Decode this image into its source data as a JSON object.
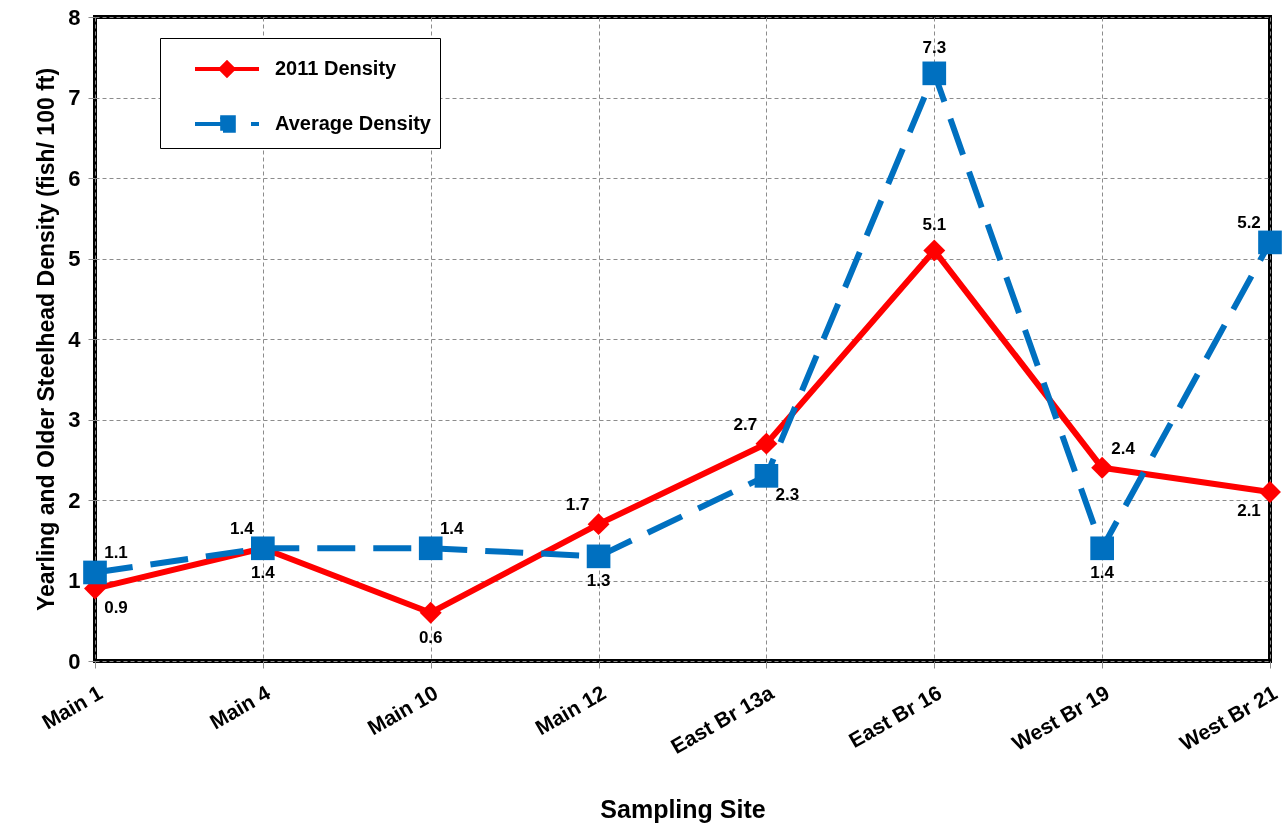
{
  "chart_data": {
    "type": "line",
    "xlabel": "Sampling Site",
    "ylabel": "Yearling and Older Steelhead Density (fish/ 100 ft)",
    "categories": [
      "Main 1",
      "Main 4",
      "Main 10",
      "Main 12",
      "East Br 13a",
      "East Br 16",
      "West Br 19",
      "West Br 21"
    ],
    "series": [
      {
        "name": "2011 Density",
        "color": "#ff0000",
        "marker": "diamond",
        "line_style": "solid",
        "values": [
          0.9,
          1.4,
          0.6,
          1.7,
          2.7,
          5.1,
          2.4,
          2.1
        ]
      },
      {
        "name": "Average Density",
        "color": "#0070c0",
        "marker": "square",
        "line_style": "dashed",
        "values": [
          1.1,
          1.4,
          1.4,
          1.3,
          2.3,
          7.3,
          1.4,
          5.2
        ]
      }
    ],
    "ylim": [
      0,
      8
    ],
    "yticks": [
      0,
      1,
      2,
      3,
      4,
      5,
      6,
      7,
      8
    ],
    "grid": true,
    "legend": "top left",
    "data_labels": true
  }
}
